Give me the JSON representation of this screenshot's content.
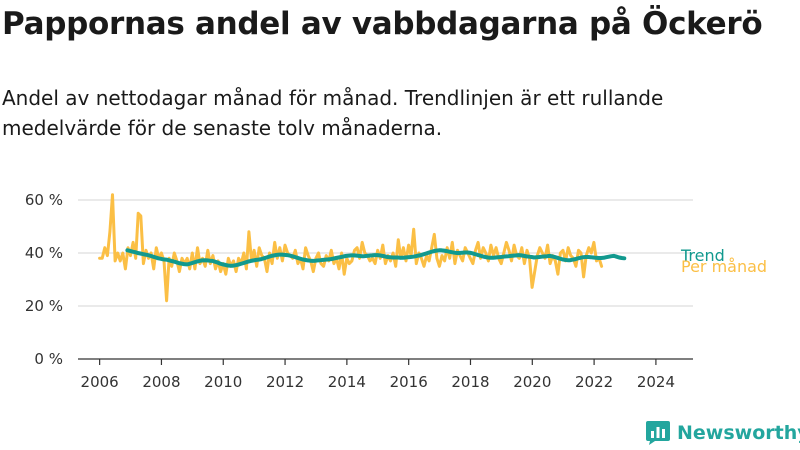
{
  "title": "Pappornas andel av vabbdagarna på Öckerö",
  "subtitle": "Andel av nettodagar månad för månad. Trendlinjen är ett rullande medelvärde för de senaste tolv månaderna.",
  "brand": {
    "name": "Newsworthy",
    "icon": "newsworthy-logo-icon",
    "color": "#23a69e"
  },
  "colors": {
    "monthly": "#fbbf45",
    "trend": "#11998e",
    "grid": "#dddddd",
    "axis": "#333333"
  },
  "chart_data": {
    "type": "line",
    "x_ticks": [
      "2006",
      "2008",
      "2010",
      "2012",
      "2014",
      "2016",
      "2018",
      "2020",
      "2022",
      "2024"
    ],
    "y_ticks": [
      "0 %",
      "20 %",
      "40 %",
      "60 %"
    ],
    "ylim": [
      0,
      60
    ],
    "xlim": [
      2005.3,
      2025.2
    ],
    "grid": true,
    "legend": "right-end-labels",
    "series": [
      {
        "name": "Per månad",
        "color": "#fbbf45",
        "x_start": 2006.0,
        "x_step": 0.0833,
        "values": [
          38,
          38,
          42,
          39,
          48,
          62,
          37,
          40,
          37,
          40,
          34,
          42,
          39,
          44,
          38,
          55,
          54,
          36,
          41,
          38,
          40,
          34,
          42,
          38,
          40,
          37,
          22,
          38,
          35,
          40,
          37,
          33,
          38,
          36,
          38,
          34,
          40,
          34,
          42,
          36,
          38,
          35,
          41,
          36,
          39,
          34,
          37,
          33,
          36,
          32,
          38,
          35,
          37,
          33,
          38,
          36,
          40,
          34,
          48,
          37,
          41,
          35,
          42,
          39,
          38,
          33,
          40,
          36,
          44,
          38,
          42,
          37,
          43,
          40,
          39,
          38,
          41,
          36,
          38,
          34,
          42,
          39,
          37,
          33,
          38,
          40,
          36,
          35,
          39,
          37,
          41,
          36,
          38,
          34,
          40,
          32,
          38,
          36,
          37,
          41,
          42,
          38,
          44,
          40,
          39,
          37,
          38,
          36,
          41,
          38,
          43,
          36,
          39,
          37,
          40,
          35,
          45,
          38,
          42,
          37,
          43,
          39,
          49,
          36,
          40,
          38,
          35,
          39,
          37,
          42,
          47,
          38,
          35,
          39,
          37,
          42,
          38,
          44,
          36,
          41,
          39,
          37,
          42,
          40,
          38,
          36,
          41,
          44,
          38,
          42,
          40,
          37,
          43,
          39,
          42,
          38,
          36,
          40,
          44,
          41,
          37,
          43,
          39,
          38,
          42,
          36,
          41,
          38,
          27,
          33,
          39,
          42,
          40,
          38,
          43,
          36,
          39,
          37,
          32,
          40,
          41,
          37,
          42,
          39,
          38,
          35,
          41,
          40,
          31,
          39,
          42,
          40,
          44,
          37,
          38,
          35
        ]
      },
      {
        "name": "Trend",
        "color": "#11998e",
        "x_start": 2006.9,
        "x_step": 0.0833,
        "values": [
          41,
          40.8,
          40.5,
          40.3,
          40,
          39.8,
          39.6,
          39.4,
          39.2,
          38.9,
          38.6,
          38.3,
          38,
          37.8,
          37.6,
          37.5,
          37.3,
          37,
          36.8,
          36.5,
          36.2,
          36,
          35.8,
          35.7,
          35.9,
          36.2,
          36.5,
          36.8,
          37,
          37.2,
          37.3,
          37.2,
          37.1,
          37,
          36.7,
          36.4,
          36,
          35.7,
          35.5,
          35.3,
          35.2,
          35.2,
          35.4,
          35.6,
          35.9,
          36.2,
          36.5,
          36.8,
          37,
          37.2,
          37.4,
          37.5,
          37.7,
          38,
          38.3,
          38.6,
          38.9,
          39.1,
          39.3,
          39.4,
          39.4,
          39.3,
          39.2,
          39,
          38.8,
          38.5,
          38.2,
          37.9,
          37.6,
          37.4,
          37.2,
          37.1,
          37,
          37.1,
          37.2,
          37.3,
          37.4,
          37.5,
          37.6,
          37.7,
          37.9,
          38.1,
          38.3,
          38.5,
          38.7,
          38.9,
          39,
          39.1,
          39.1,
          39,
          38.9,
          38.8,
          38.8,
          38.9,
          39,
          39.1,
          39.2,
          39.2,
          39.1,
          38.9,
          38.7,
          38.5,
          38.4,
          38.3,
          38.3,
          38.3,
          38.2,
          38.2,
          38.3,
          38.4,
          38.5,
          38.6,
          38.8,
          39,
          39.2,
          39.5,
          39.8,
          40.1,
          40.4,
          40.7,
          40.9,
          41,
          41,
          40.9,
          40.7,
          40.5,
          40.3,
          40.1,
          40,
          40,
          40.1,
          40.2,
          40.2,
          40.1,
          39.9,
          39.6,
          39.3,
          39,
          38.7,
          38.5,
          38.3,
          38.2,
          38.2,
          38.3,
          38.4,
          38.5,
          38.6,
          38.7,
          38.8,
          38.9,
          39,
          39.1,
          39.2,
          39.1,
          38.9,
          38.7,
          38.6,
          38.5,
          38.3,
          38.4,
          38.5,
          38.6,
          38.7,
          38.8,
          38.9,
          38.7,
          38.5,
          38.2,
          37.9,
          37.6,
          37.4,
          37.3,
          37.3,
          37.5,
          37.7,
          38,
          38.2,
          38.4,
          38.5,
          38.5,
          38.4,
          38.3,
          38.2,
          38.1,
          38.1,
          38.2,
          38.4,
          38.6,
          38.8,
          38.9,
          38.6,
          38.3,
          38.1,
          38
        ]
      }
    ]
  }
}
